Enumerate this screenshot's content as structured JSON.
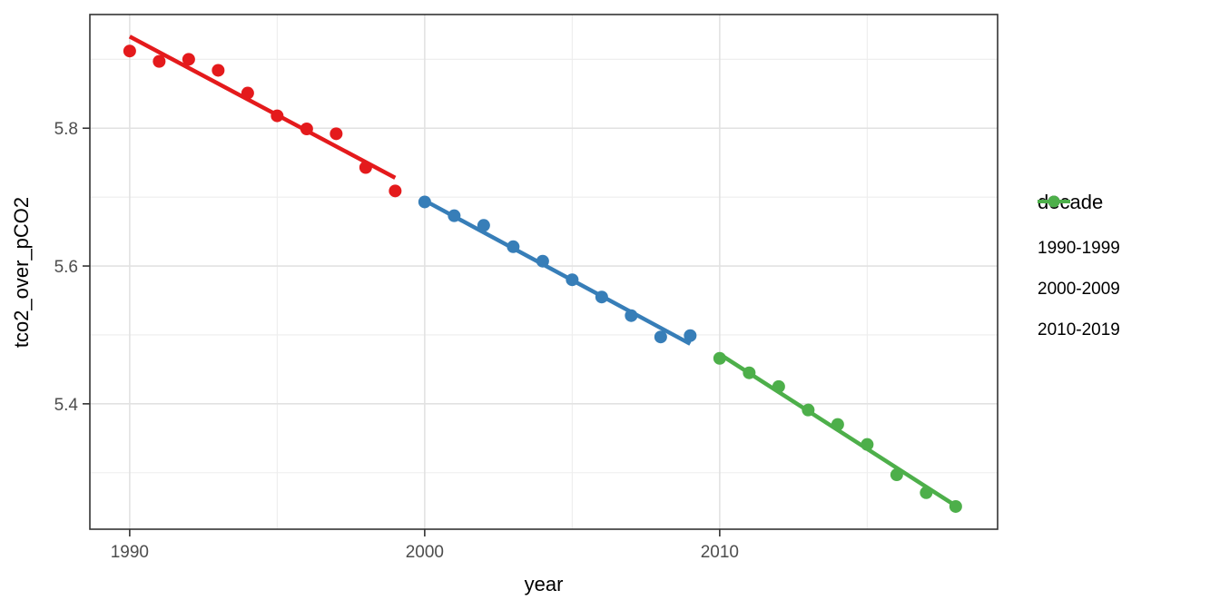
{
  "figure": {
    "background": "#FFFFFF"
  },
  "chart_data": {
    "type": "scatter",
    "title": "",
    "xlabel": "year",
    "ylabel": "tco2_over_pCO2",
    "grid": true,
    "xlim": [
      1988.65,
      2019.42
    ],
    "ylim": [
      5.218,
      5.965
    ],
    "x_major_ticks": [
      1990,
      2000,
      2010
    ],
    "x_major_tick_labels": [
      "1990",
      "2000",
      "2010"
    ],
    "x_minor_gridlines": [
      1995,
      2005,
      2015
    ],
    "y_major_ticks": [
      5.4,
      5.6,
      5.8
    ],
    "y_major_tick_labels": [
      "5.4",
      "5.6",
      "5.8"
    ],
    "y_minor_gridlines": [
      5.3,
      5.5,
      5.7,
      5.9
    ],
    "legend": {
      "title": "decade",
      "position": "right"
    },
    "series": [
      {
        "name": "1990-1999",
        "color": "#E41A1C",
        "x": [
          1990,
          1991,
          1992,
          1993,
          1994,
          1995,
          1996,
          1997,
          1998,
          1999
        ],
        "y": [
          5.912,
          5.897,
          5.9,
          5.884,
          5.851,
          5.818,
          5.799,
          5.792,
          5.743,
          5.709
        ],
        "trend": {
          "x1": 1990,
          "y1": 5.933,
          "x2": 1999,
          "y2": 5.728
        }
      },
      {
        "name": "2000-2009",
        "color": "#377EB8",
        "x": [
          2000,
          2001,
          2002,
          2003,
          2004,
          2005,
          2006,
          2007,
          2008,
          2009
        ],
        "y": [
          5.693,
          5.673,
          5.659,
          5.628,
          5.607,
          5.58,
          5.555,
          5.528,
          5.497,
          5.499
        ],
        "trend": {
          "x1": 2000,
          "y1": 5.695,
          "x2": 2009,
          "y2": 5.487
        }
      },
      {
        "name": "2010-2019",
        "color": "#4DAF4A",
        "x": [
          2010,
          2011,
          2012,
          2013,
          2014,
          2015,
          2016,
          2017,
          2018
        ],
        "y": [
          5.466,
          5.445,
          5.425,
          5.391,
          5.37,
          5.341,
          5.297,
          5.271,
          5.251
        ],
        "trend": {
          "x1": 2010,
          "y1": 5.472,
          "x2": 2018,
          "y2": 5.252
        }
      }
    ],
    "style": {
      "panel_background": "#FFFFFF",
      "panel_border": "#333333",
      "grid_major_color": "#E2E2E2",
      "grid_minor_color": "#EDEDED",
      "tick_color": "#333333",
      "tick_label_color": "#4D4D4D",
      "axis_title_color": "#000000",
      "point_radius": 7,
      "line_width": 4.5
    }
  }
}
